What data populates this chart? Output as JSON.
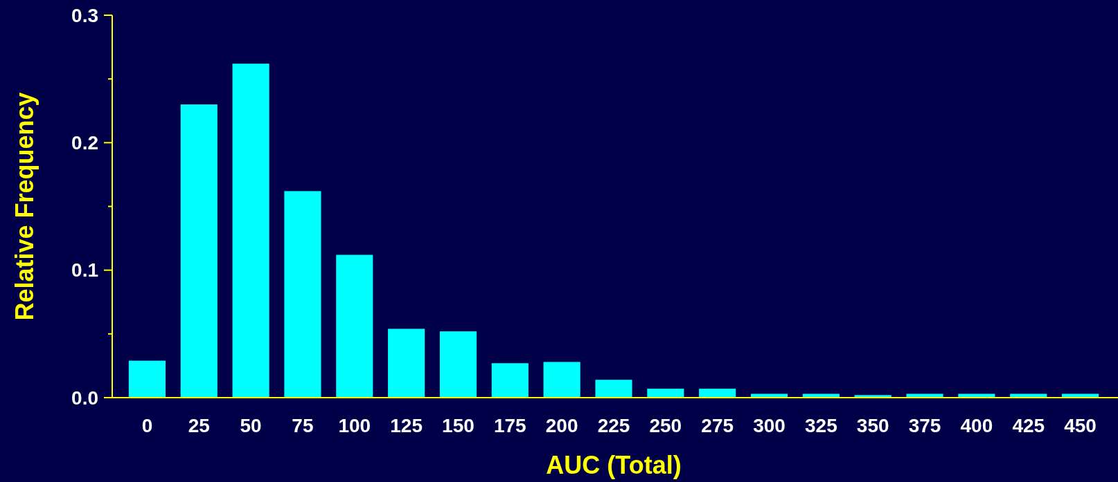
{
  "chart_data": {
    "type": "bar",
    "xlabel": "AUC (Total)",
    "ylabel": "Relative Frequency",
    "categories": [
      "0",
      "25",
      "50",
      "75",
      "100",
      "125",
      "150",
      "175",
      "200",
      "225",
      "250",
      "275",
      "300",
      "325",
      "350",
      "375",
      "400",
      "425",
      "450"
    ],
    "values": [
      0.029,
      0.23,
      0.262,
      0.162,
      0.112,
      0.054,
      0.052,
      0.027,
      0.028,
      0.014,
      0.007,
      0.007,
      0.003,
      0.003,
      0.002,
      0.003,
      0.003,
      0.003,
      0.003
    ],
    "color": "#00ffff",
    "ylim": [
      0,
      0.3
    ],
    "yticks": [
      {
        "value": 0,
        "label": "0.0"
      },
      {
        "value": 0.05,
        "label": null
      },
      {
        "value": 0.1,
        "label": "0.1"
      },
      {
        "value": 0.15,
        "label": null
      },
      {
        "value": 0.2,
        "label": "0.2"
      },
      {
        "value": 0.25,
        "label": null
      },
      {
        "value": 0.3,
        "label": "0.3"
      }
    ],
    "grid": false
  }
}
